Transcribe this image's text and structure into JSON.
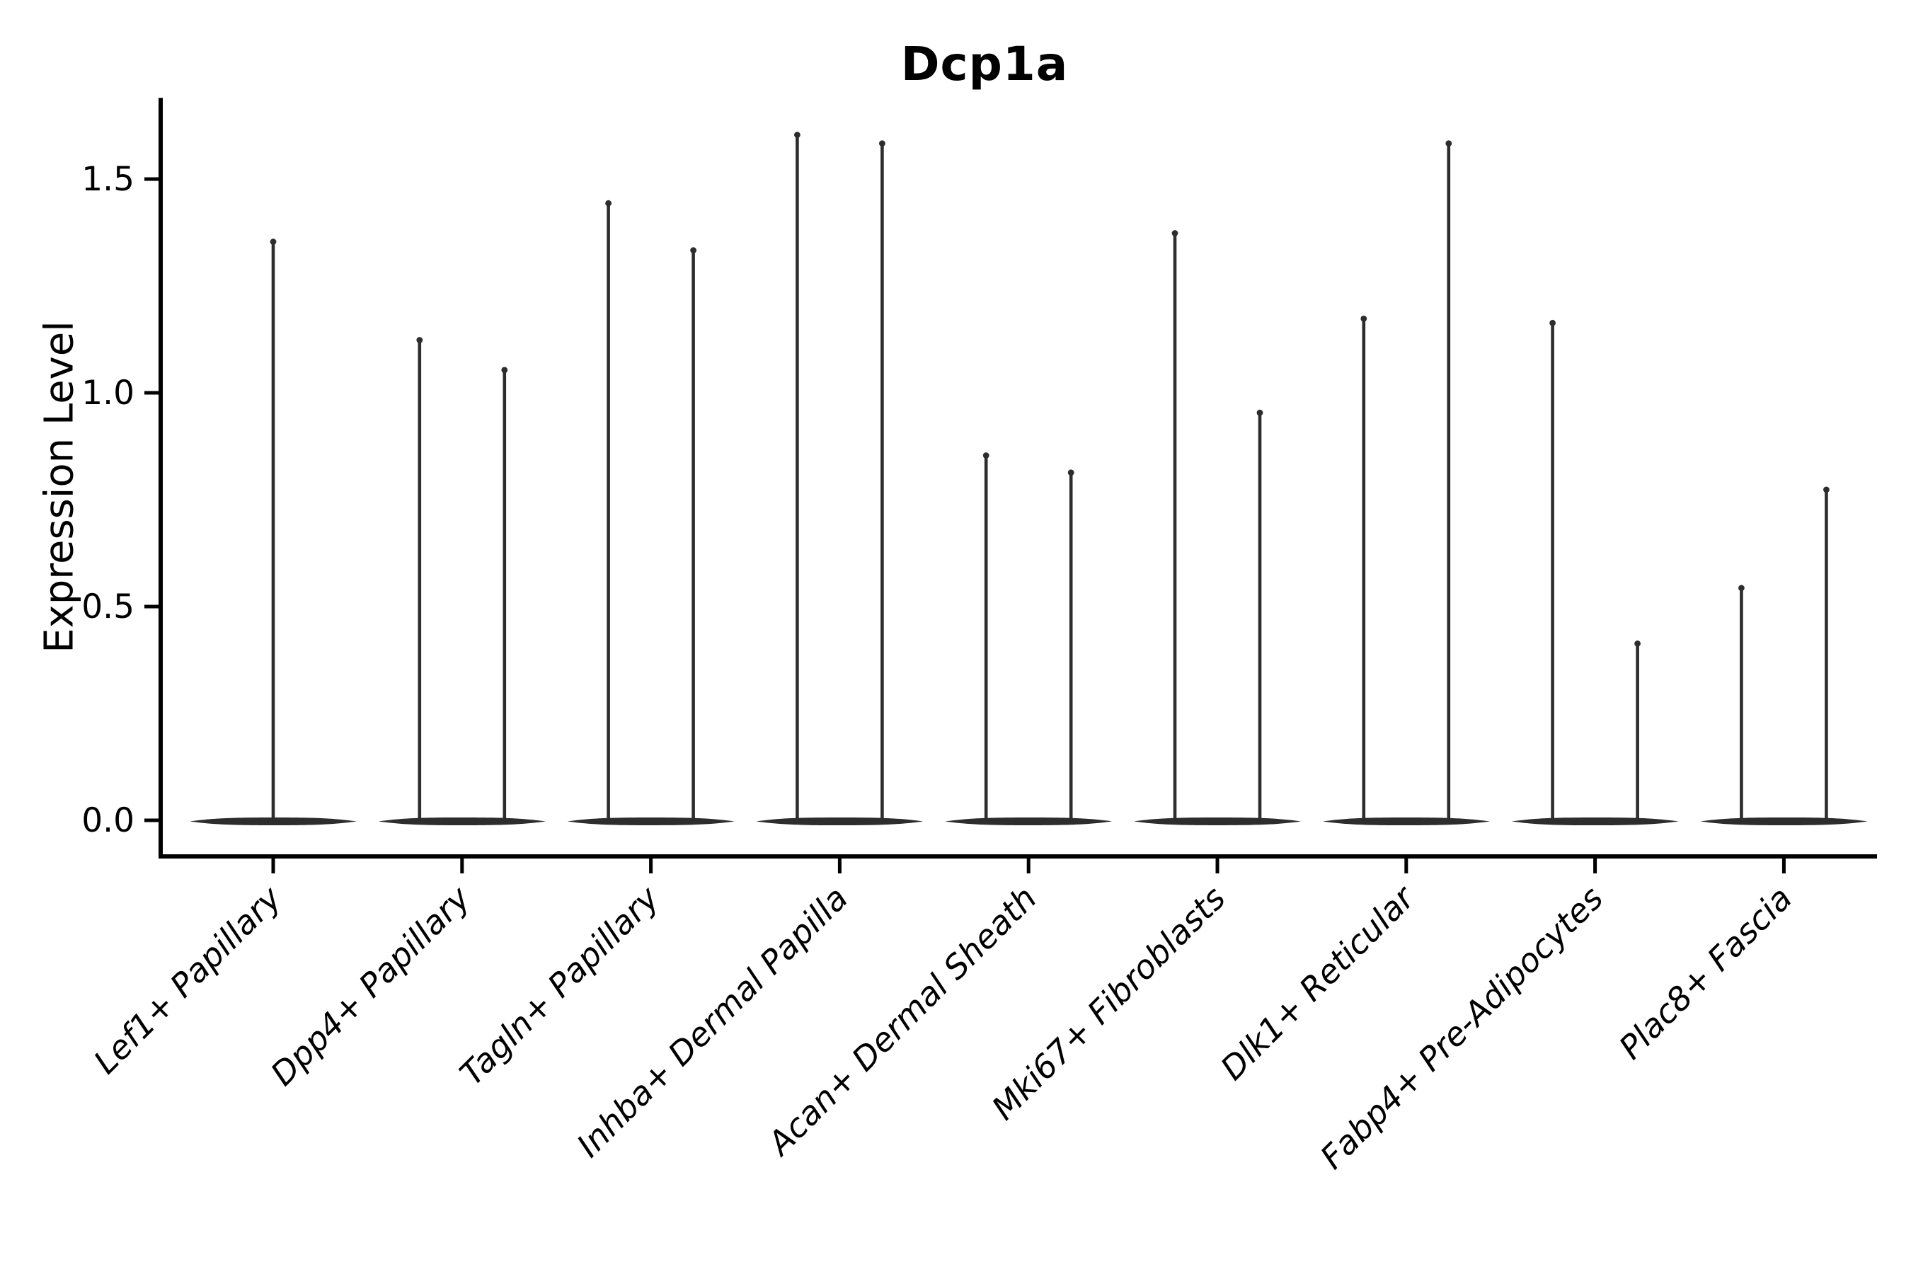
{
  "chart_data": {
    "type": "violin",
    "title": "Dcp1a",
    "ylabel": "Expression Level",
    "xlabel": "",
    "yticks": [
      "0.0",
      "0.5",
      "1.0",
      "1.5"
    ],
    "ytick_values": [
      0.0,
      0.5,
      1.0,
      1.5
    ],
    "ylim": [
      -0.08,
      1.69
    ],
    "grid": false,
    "legend_position": "none",
    "background_color": "#ffffff",
    "axis_color": "#000000",
    "violin_color": "#2d2d2d",
    "categories": [
      "Lef1+ Papillary",
      "Dpp4+ Papillary",
      "Tagln+ Papillary",
      "Inhba+ Dermal Papilla",
      "Acan+ Dermal Sheath",
      "Mki67+ Fibroblasts",
      "Dlk1+ Reticular",
      "Fabp4+ Pre-Adipocytes",
      "Plac8+ Fascia"
    ],
    "series": [
      {
        "category": "Lef1+ Papillary",
        "baseline_value": 0.0,
        "spike_positions": [
          "center"
        ],
        "spike_maxima": [
          1.36
        ]
      },
      {
        "category": "Dpp4+ Papillary",
        "baseline_value": 0.0,
        "spike_positions": [
          "left",
          "right"
        ],
        "spike_maxima": [
          1.13,
          1.06
        ]
      },
      {
        "category": "Tagln+ Papillary",
        "baseline_value": 0.0,
        "spike_positions": [
          "left",
          "right"
        ],
        "spike_maxima": [
          1.45,
          1.34
        ]
      },
      {
        "category": "Inhba+ Dermal Papilla",
        "baseline_value": 0.0,
        "spike_positions": [
          "left",
          "right"
        ],
        "spike_maxima": [
          1.61,
          1.59
        ]
      },
      {
        "category": "Acan+ Dermal Sheath",
        "baseline_value": 0.0,
        "spike_positions": [
          "left",
          "right"
        ],
        "spike_maxima": [
          0.86,
          0.82
        ]
      },
      {
        "category": "Mki67+ Fibroblasts",
        "baseline_value": 0.0,
        "spike_positions": [
          "left",
          "right"
        ],
        "spike_maxima": [
          1.38,
          0.96
        ]
      },
      {
        "category": "Dlk1+ Reticular",
        "baseline_value": 0.0,
        "spike_positions": [
          "left",
          "right"
        ],
        "spike_maxima": [
          1.18,
          1.59
        ]
      },
      {
        "category": "Fabp4+ Pre-Adipocytes",
        "baseline_value": 0.0,
        "spike_positions": [
          "left",
          "right"
        ],
        "spike_maxima": [
          1.17,
          0.42
        ]
      },
      {
        "category": "Plac8+ Fascia",
        "baseline_value": 0.0,
        "spike_positions": [
          "left",
          "right"
        ],
        "spike_maxima": [
          0.55,
          0.78
        ]
      }
    ]
  }
}
